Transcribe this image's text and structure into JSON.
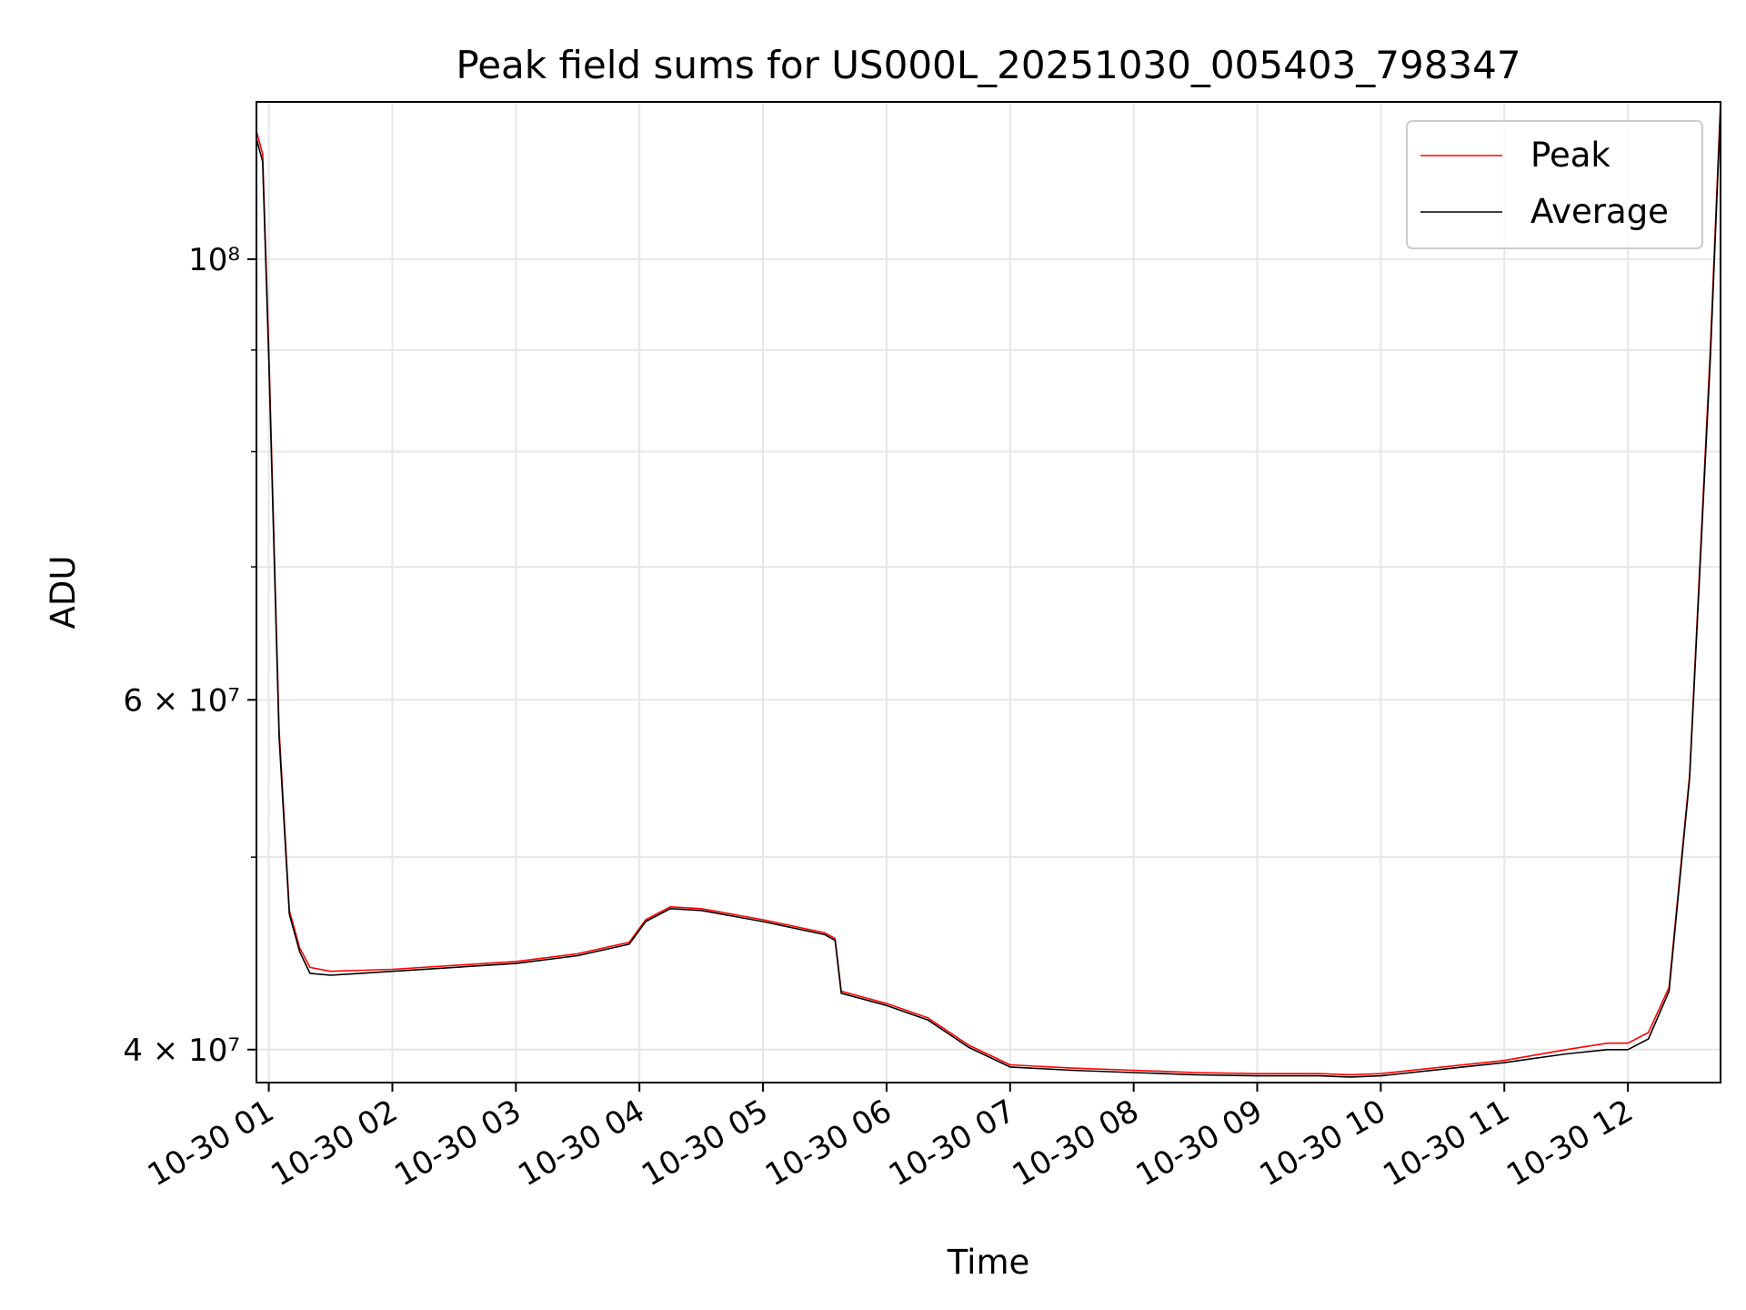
{
  "chart_data": {
    "type": "line",
    "title": "Peak field sums for US000L_20251030_005403_798347",
    "xlabel": "Time",
    "ylabel": "ADU",
    "yscale": "log",
    "ylim": [
      38500000,
      120000000
    ],
    "xlim": [
      "2025-10-30 00:54",
      "2025-10-30 12:45"
    ],
    "grid": true,
    "legend_position": "top-right",
    "x_ticks": [
      {
        "label": "10-30 01",
        "value": "2025-10-30 01:00"
      },
      {
        "label": "10-30 02",
        "value": "2025-10-30 02:00"
      },
      {
        "label": "10-30 03",
        "value": "2025-10-30 03:00"
      },
      {
        "label": "10-30 04",
        "value": "2025-10-30 04:00"
      },
      {
        "label": "10-30 05",
        "value": "2025-10-30 05:00"
      },
      {
        "label": "10-30 06",
        "value": "2025-10-30 06:00"
      },
      {
        "label": "10-30 07",
        "value": "2025-10-30 07:00"
      },
      {
        "label": "10-30 08",
        "value": "2025-10-30 08:00"
      },
      {
        "label": "10-30 09",
        "value": "2025-10-30 09:00"
      },
      {
        "label": "10-30 10",
        "value": "2025-10-30 10:00"
      },
      {
        "label": "10-30 11",
        "value": "2025-10-30 11:00"
      },
      {
        "label": "10-30 12",
        "value": "2025-10-30 12:00"
      }
    ],
    "y_ticks": [
      {
        "label": "4 × 10⁷",
        "value": 40000000
      },
      {
        "label": "6 × 10⁷",
        "value": 60000000
      },
      {
        "label": "10⁸",
        "value": 100000000
      }
    ],
    "y_minor_ticks": [
      50000000,
      70000000,
      80000000,
      90000000
    ],
    "series": [
      {
        "name": "Peak",
        "color": "#ff0000",
        "x": [
          "2025-10-30 00:54",
          "2025-10-30 00:57",
          "2025-10-30 01:00",
          "2025-10-30 01:05",
          "2025-10-30 01:10",
          "2025-10-30 01:15",
          "2025-10-30 01:20",
          "2025-10-30 01:30",
          "2025-10-30 02:00",
          "2025-10-30 02:30",
          "2025-10-30 03:00",
          "2025-10-30 03:30",
          "2025-10-30 03:55",
          "2025-10-30 04:03",
          "2025-10-30 04:15",
          "2025-10-30 04:30",
          "2025-10-30 05:00",
          "2025-10-30 05:30",
          "2025-10-30 05:35",
          "2025-10-30 05:38",
          "2025-10-30 06:00",
          "2025-10-30 06:20",
          "2025-10-30 06:40",
          "2025-10-30 07:00",
          "2025-10-30 07:30",
          "2025-10-30 08:00",
          "2025-10-30 08:30",
          "2025-10-30 09:00",
          "2025-10-30 09:30",
          "2025-10-30 09:45",
          "2025-10-30 10:00",
          "2025-10-30 10:30",
          "2025-10-30 11:00",
          "2025-10-30 11:30",
          "2025-10-30 11:50",
          "2025-10-30 12:00",
          "2025-10-30 12:10",
          "2025-10-30 12:20",
          "2025-10-30 12:30",
          "2025-10-30 12:40",
          "2025-10-30 12:45"
        ],
        "y": [
          116000000,
          113000000,
          90000000,
          58000000,
          47000000,
          45000000,
          44000000,
          43800000,
          43900000,
          44100000,
          44300000,
          44700000,
          45300000,
          46500000,
          47200000,
          47100000,
          46500000,
          45800000,
          45500000,
          42800000,
          42200000,
          41500000,
          40200000,
          39300000,
          39150000,
          39050000,
          38950000,
          38900000,
          38900000,
          38850000,
          38900000,
          39200000,
          39500000,
          40000000,
          40300000,
          40300000,
          40800000,
          43000000,
          55000000,
          90000000,
          120000000
        ]
      },
      {
        "name": "Average",
        "color": "#000000",
        "x": [
          "2025-10-30 00:54",
          "2025-10-30 00:57",
          "2025-10-30 01:00",
          "2025-10-30 01:05",
          "2025-10-30 01:10",
          "2025-10-30 01:15",
          "2025-10-30 01:20",
          "2025-10-30 01:30",
          "2025-10-30 02:00",
          "2025-10-30 02:30",
          "2025-10-30 03:00",
          "2025-10-30 03:30",
          "2025-10-30 03:55",
          "2025-10-30 04:03",
          "2025-10-30 04:15",
          "2025-10-30 04:30",
          "2025-10-30 05:00",
          "2025-10-30 05:30",
          "2025-10-30 05:35",
          "2025-10-30 05:38",
          "2025-10-30 06:00",
          "2025-10-30 06:20",
          "2025-10-30 06:40",
          "2025-10-30 07:00",
          "2025-10-30 07:30",
          "2025-10-30 08:00",
          "2025-10-30 08:30",
          "2025-10-30 09:00",
          "2025-10-30 09:30",
          "2025-10-30 09:45",
          "2025-10-30 10:00",
          "2025-10-30 10:30",
          "2025-10-30 11:00",
          "2025-10-30 11:30",
          "2025-10-30 11:50",
          "2025-10-30 12:00",
          "2025-10-30 12:10",
          "2025-10-30 12:20",
          "2025-10-30 12:30",
          "2025-10-30 12:40",
          "2025-10-30 12:45"
        ],
        "y": [
          115000000,
          112000000,
          89000000,
          57500000,
          46800000,
          44800000,
          43700000,
          43600000,
          43800000,
          44000000,
          44200000,
          44600000,
          45200000,
          46400000,
          47100000,
          47000000,
          46400000,
          45700000,
          45400000,
          42700000,
          42100000,
          41400000,
          40100000,
          39200000,
          39050000,
          38950000,
          38850000,
          38800000,
          38800000,
          38750000,
          38800000,
          39100000,
          39400000,
          39800000,
          40000000,
          40000000,
          40500000,
          42800000,
          54800000,
          89000000,
          119000000
        ]
      }
    ]
  }
}
